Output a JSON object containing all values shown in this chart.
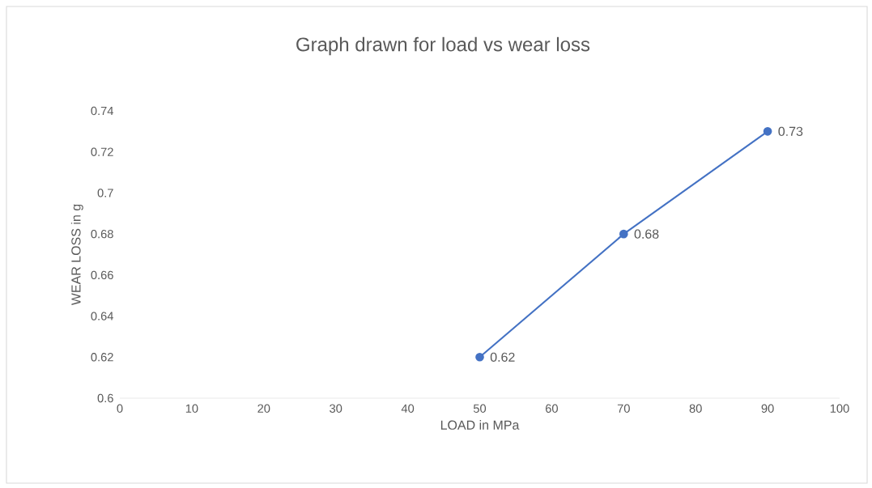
{
  "chart_data": {
    "type": "line",
    "title": "Graph drawn for load vs wear loss",
    "xlabel": "LOAD in MPa",
    "ylabel": "WEAR LOSS in g",
    "x": [
      50,
      70,
      90
    ],
    "series": [
      {
        "color": "#4472c4",
        "values": [
          0.62,
          0.68,
          0.73
        ]
      }
    ],
    "xlim": [
      0,
      100
    ],
    "xticks": [
      0,
      10,
      20,
      30,
      40,
      50,
      60,
      70,
      80,
      90,
      100
    ],
    "ylim": [
      0.6,
      0.74
    ],
    "yticks": [
      0.6,
      0.62,
      0.64,
      0.66,
      0.68,
      0.7,
      0.72,
      0.74
    ],
    "marker": "circle",
    "line_style": "solid",
    "data_labels": true
  }
}
